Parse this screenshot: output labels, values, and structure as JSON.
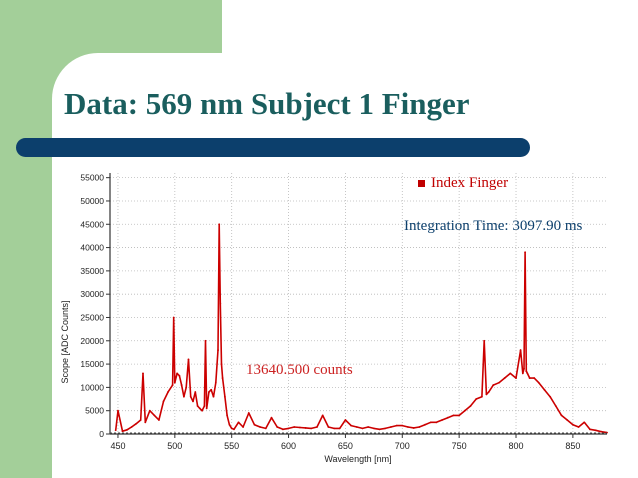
{
  "slide": {
    "title": "Data: 569 nm Subject 1 Finger"
  },
  "annotations": {
    "integration_time": "Integration Time: 3097.90 ms",
    "counts": "13640.500 counts"
  },
  "colors": {
    "series": "#cc0000",
    "title": "#1a5e5e",
    "bar": "#0c3f6c",
    "green": "#a3cf99"
  },
  "chart_data": {
    "type": "line",
    "xlabel": "Wavelength [nm]",
    "ylabel": "Scope [ADC Counts]",
    "xlim": [
      443,
      880
    ],
    "ylim": [
      0,
      56000
    ],
    "xticks": [
      450,
      500,
      550,
      600,
      650,
      700,
      750,
      800,
      850
    ],
    "yticks": [
      0,
      5000,
      10000,
      15000,
      20000,
      25000,
      30000,
      35000,
      40000,
      45000,
      50000,
      55000
    ],
    "grid": "dotted",
    "legend": "top-right",
    "series": [
      {
        "name": "Index Finger",
        "x": [
          448,
          450,
          454,
          458,
          462,
          466,
          470,
          472,
          474,
          478,
          482,
          486,
          490,
          494,
          498,
          499,
          500,
          502,
          504,
          506,
          508,
          510,
          512,
          514,
          516,
          518,
          520,
          522,
          524,
          526,
          527,
          528,
          530,
          532,
          534,
          536,
          538,
          539,
          540,
          541,
          542,
          544,
          546,
          548,
          550,
          552,
          556,
          560,
          565,
          570,
          575,
          580,
          585,
          590,
          595,
          600,
          605,
          610,
          615,
          620,
          625,
          630,
          635,
          640,
          645,
          650,
          655,
          660,
          665,
          670,
          675,
          680,
          685,
          690,
          695,
          700,
          705,
          710,
          715,
          720,
          725,
          730,
          735,
          740,
          745,
          750,
          755,
          760,
          765,
          770,
          772,
          774,
          776,
          780,
          785,
          790,
          795,
          800,
          804,
          806,
          807,
          808,
          809,
          810,
          812,
          816,
          820,
          825,
          830,
          835,
          840,
          845,
          850,
          855,
          860,
          865,
          870,
          875,
          880
        ],
        "y": [
          800,
          5000,
          600,
          900,
          1500,
          2200,
          3000,
          13000,
          2500,
          5000,
          4000,
          3000,
          7000,
          9000,
          10500,
          25000,
          11000,
          13000,
          12500,
          10500,
          8000,
          10000,
          16000,
          8000,
          7000,
          9000,
          6000,
          5500,
          5000,
          6000,
          20000,
          5500,
          9000,
          9500,
          8000,
          11000,
          18000,
          45000,
          28000,
          15000,
          12000,
          8000,
          4000,
          2000,
          1200,
          1000,
          2500,
          1500,
          4500,
          2000,
          1500,
          1200,
          3500,
          1500,
          1000,
          1200,
          1500,
          1400,
          1300,
          1200,
          1500,
          4000,
          1500,
          1200,
          1200,
          3000,
          1800,
          1500,
          1200,
          1500,
          1200,
          1000,
          1200,
          1500,
          1800,
          1800,
          1500,
          1300,
          1500,
          2000,
          2500,
          2500,
          3000,
          3500,
          4000,
          4000,
          5000,
          6000,
          7500,
          8000,
          20000,
          8500,
          9000,
          10500,
          11000,
          12000,
          13000,
          12000,
          18000,
          13000,
          14000,
          39000,
          13500,
          13000,
          12000,
          12000,
          11000,
          9500,
          8000,
          6000,
          4000,
          3000,
          2000,
          1500,
          2500,
          1000,
          800,
          500,
          300
        ]
      }
    ]
  }
}
